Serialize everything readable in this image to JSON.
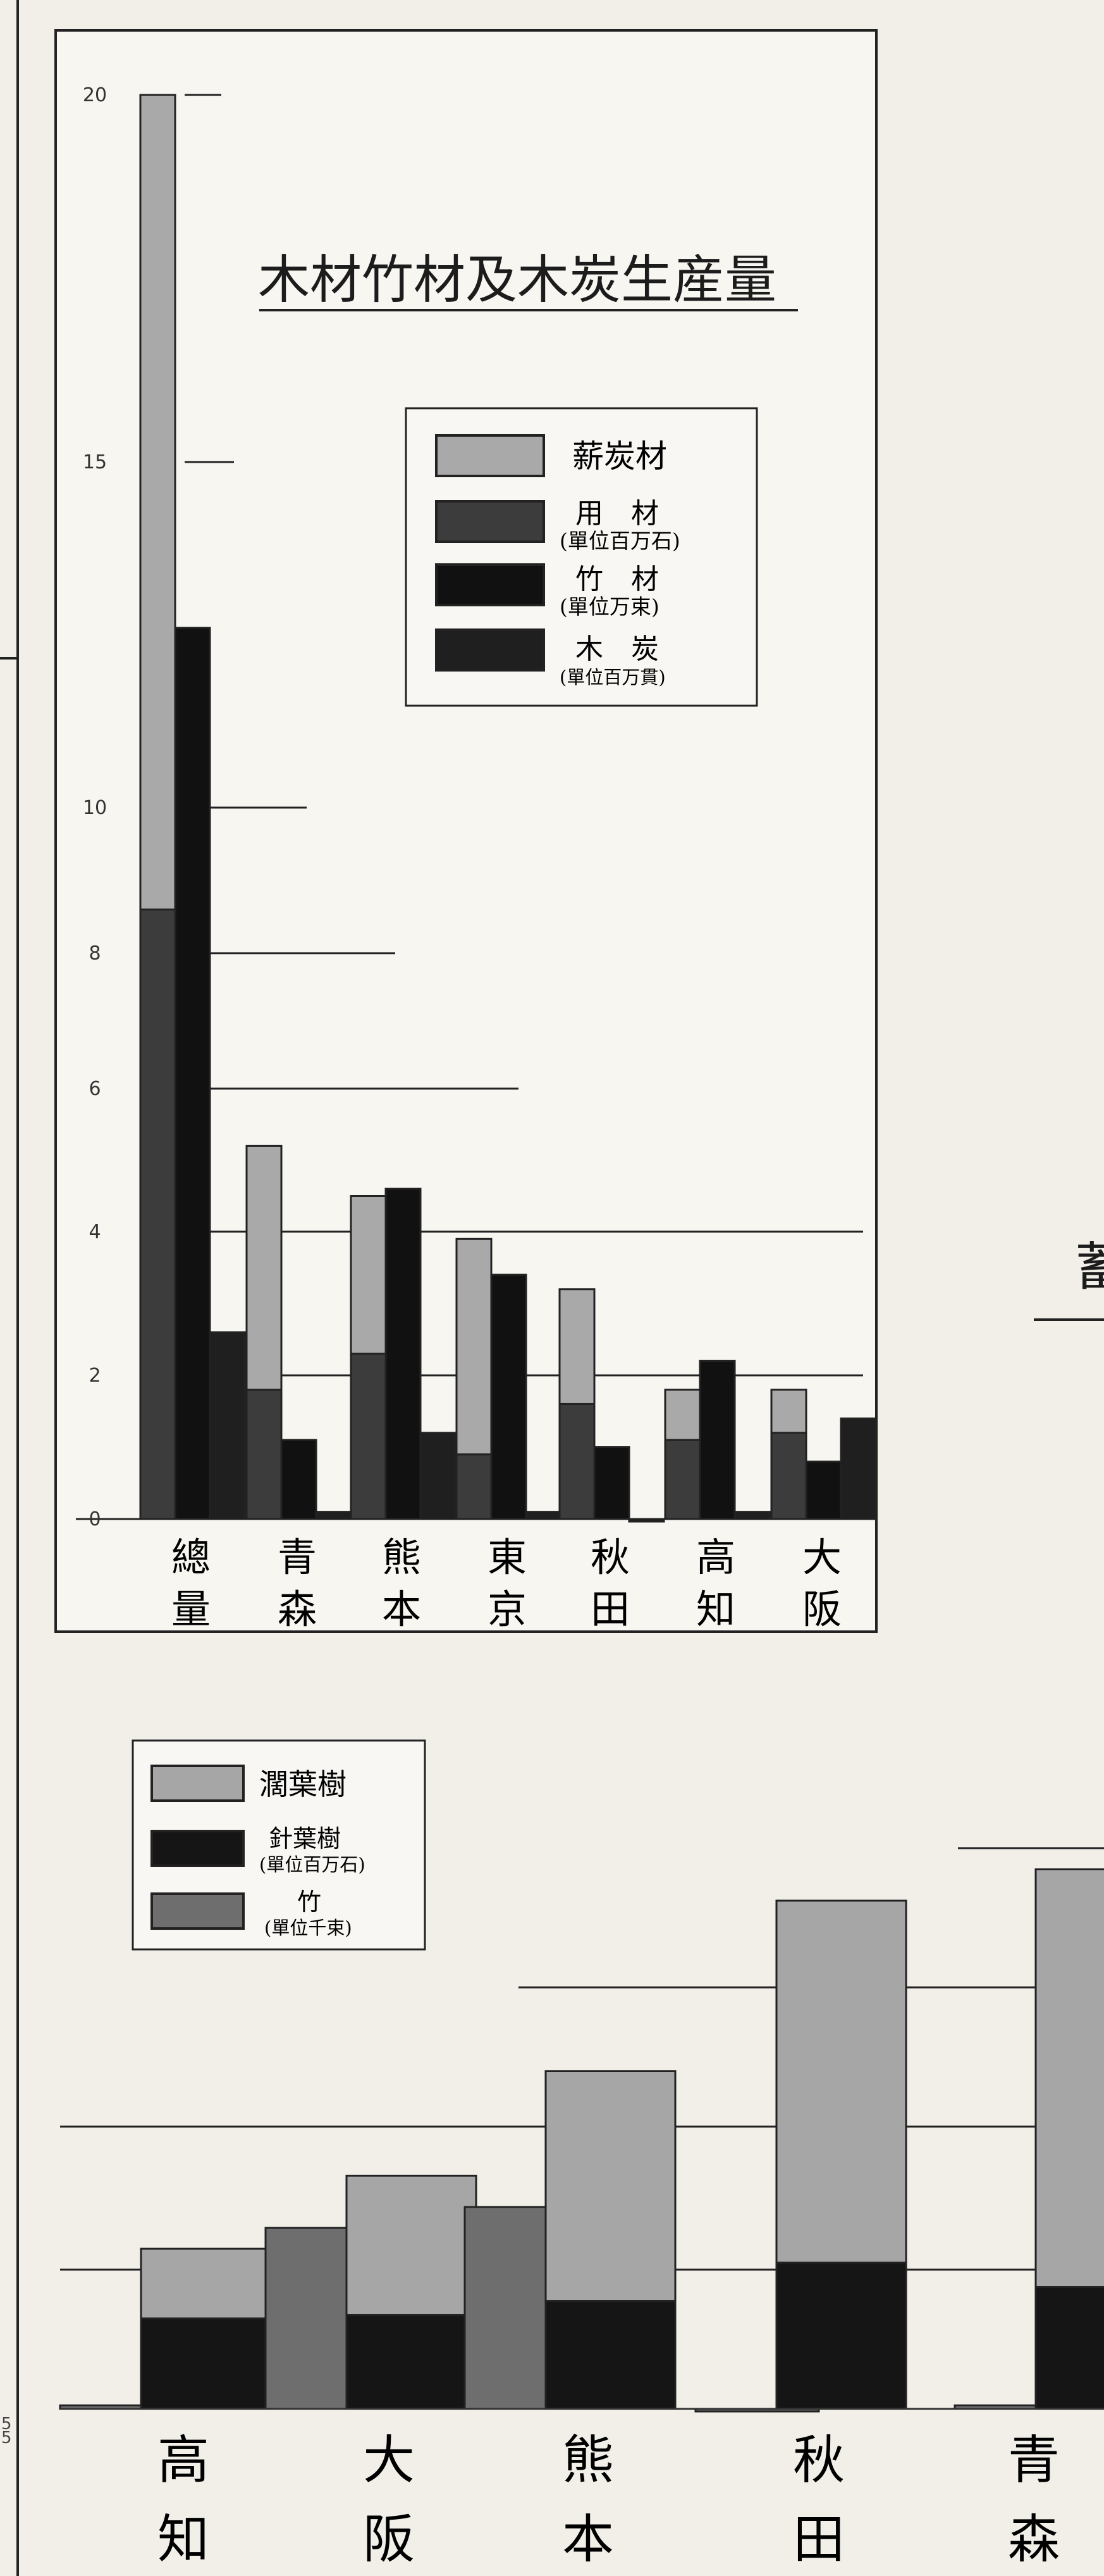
{
  "page_edge_marks": [
    "5",
    "5"
  ],
  "chart_data": [
    {
      "type": "bar",
      "title": "木材竹材及木炭生産量",
      "y_ticks": [
        "20",
        "15",
        "10",
        "8",
        "6",
        "4",
        "2",
        "0"
      ],
      "categories": [
        "總量",
        "青森",
        "熊本",
        "東京",
        "秋田",
        "高知",
        "大阪"
      ],
      "legend": [
        {
          "label": "薪炭材",
          "note": "",
          "color": "#a9a9a9"
        },
        {
          "label": "用　材",
          "note": "(單位百万石)",
          "color": "#3c3c3c"
        },
        {
          "label": "竹　材",
          "note": "(單位万束)",
          "color": "#111111"
        },
        {
          "label": "木　炭",
          "note": "(單位百万貫)",
          "color": "#1f1f1f"
        }
      ],
      "series": [
        {
          "name": "用材",
          "color": "#3c3c3c",
          "values": [
            8.6,
            1.8,
            2.3,
            0.9,
            1.6,
            1.1,
            1.2
          ]
        },
        {
          "name": "薪炭材",
          "color": "#a9a9a9",
          "values": [
            11.6,
            3.4,
            2.2,
            3.0,
            1.6,
            0.7,
            0.6
          ]
        },
        {
          "name": "竹材",
          "color": "#111111",
          "values": [
            12.6,
            1.1,
            4.6,
            3.4,
            1.0,
            2.2,
            0.8
          ]
        },
        {
          "name": "木炭",
          "color": "#1f1f1f",
          "values": [
            2.6,
            0.1,
            1.2,
            0.1,
            0.0,
            0.1,
            1.4
          ]
        }
      ],
      "legend_placement": "right"
    },
    {
      "type": "bar",
      "title": "",
      "categories": [
        "高知",
        "大阪",
        "熊本",
        "秋田",
        "青森"
      ],
      "legend": [
        {
          "label": "濶葉樹",
          "note": "",
          "color": "#a6a6a6"
        },
        {
          "label": "針葉樹",
          "note": "(單位百万石)",
          "color": "#151515"
        },
        {
          "label": "竹",
          "note": "(單位千束)",
          "color": "#6e6e6e"
        }
      ],
      "series": [
        {
          "name": "竹",
          "color": "#6e6e6e",
          "values": [
            0.05,
            2.6,
            2.9,
            0.0,
            0.05
          ]
        },
        {
          "name": "針葉樹",
          "color": "#151515",
          "values": [
            1.3,
            1.35,
            1.55,
            2.1,
            1.75
          ]
        },
        {
          "name": "濶葉樹",
          "color": "#a6a6a6",
          "values": [
            1.0,
            2.0,
            3.3,
            5.2,
            6.0
          ]
        }
      ],
      "legend_placement": "top-left"
    }
  ]
}
